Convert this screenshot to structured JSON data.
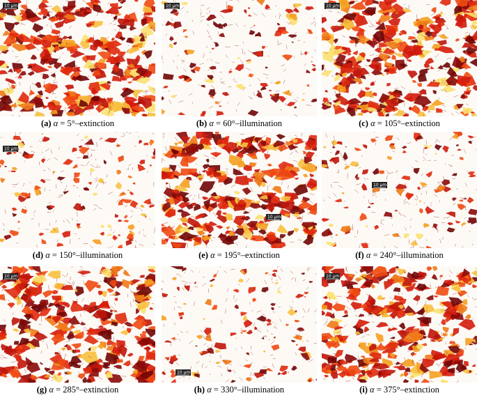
{
  "panels": [
    {
      "image": {
        "scale_bar": "10 μm"
      },
      "caption": {
        "label": "(a)",
        "symbol": "α",
        "text": "= 5°–extinction"
      }
    },
    {
      "image": {
        "scale_bar": "10 μm"
      },
      "caption": {
        "label": "(b)",
        "symbol": "α",
        "text": "= 60°–illumination"
      }
    },
    {
      "image": {
        "scale_bar": "10 μm"
      },
      "caption": {
        "label": "(c)",
        "symbol": "α",
        "text": "= 105°–extinction"
      }
    },
    {
      "image": {
        "scale_bar": "10 μm"
      },
      "caption": {
        "label": "(d)",
        "symbol": "α",
        "text": "= 150°–illumination"
      }
    },
    {
      "image": {
        "scale_bar": "10 μm"
      },
      "caption": {
        "label": "(e)",
        "symbol": "α",
        "text": "= 195°–extinction"
      }
    },
    {
      "image": {
        "scale_bar": "10 μm"
      },
      "caption": {
        "label": "(f)",
        "symbol": "α",
        "text": "= 240°–illumination"
      }
    },
    {
      "image": {
        "scale_bar": "10 μm"
      },
      "caption": {
        "label": "(g)",
        "symbol": "α",
        "text": "= 285°–extinction"
      }
    },
    {
      "image": {
        "scale_bar": "10 μm"
      },
      "caption": {
        "label": "(h)",
        "symbol": "α",
        "text": "= 330°–illumination"
      }
    },
    {
      "image": {
        "scale_bar": "10 μm"
      },
      "caption": {
        "label": "(i)",
        "symbol": "α",
        "text": "= 375°–extinction"
      }
    }
  ]
}
